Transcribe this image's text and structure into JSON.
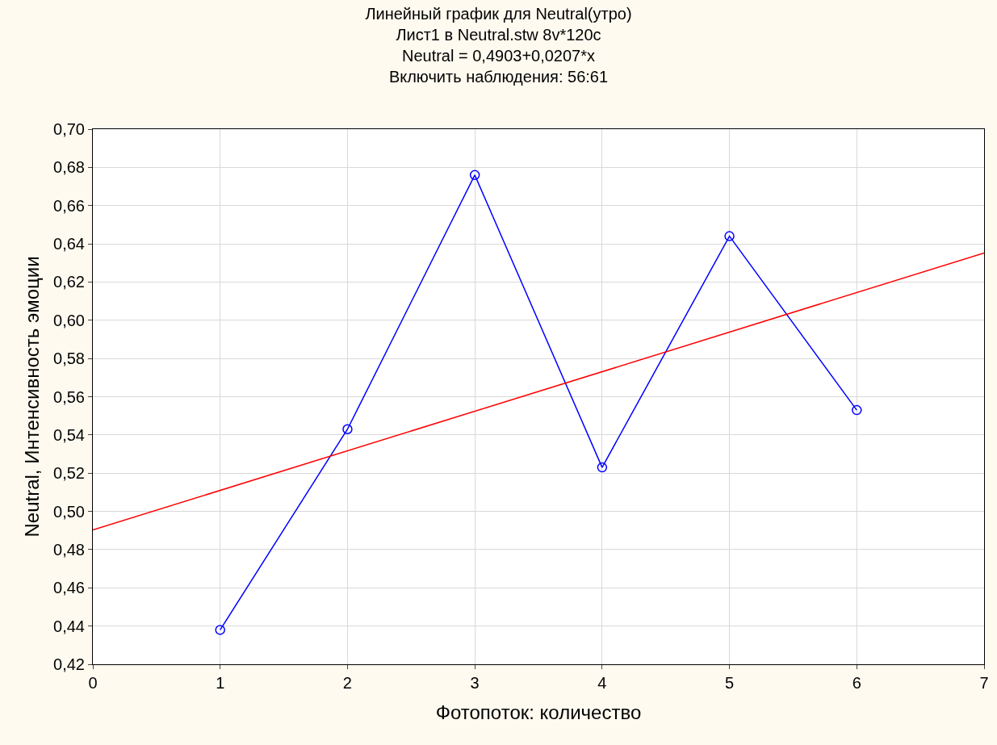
{
  "chart_data": {
    "type": "line",
    "title": "Линейный график для Neutral(утро)\nЛист1 в Neutral.stw 8v*120c\nNeutral = 0,4903+0,0207*x\nВключить наблюдения: 56:61",
    "xlabel": "Фотопоток: количество",
    "ylabel": "Neutral, Интенсивность эмоции",
    "x": [
      1,
      2,
      3,
      4,
      5,
      6
    ],
    "series": [
      {
        "color": "#0000ff",
        "values": [
          0.438,
          0.543,
          0.676,
          0.523,
          0.644,
          0.553
        ]
      },
      {
        "type": "line",
        "color": "#ff0000",
        "x": [
          0,
          7
        ],
        "values": [
          0.4903,
          0.6352
        ],
        "marker": "none"
      }
    ],
    "xlim": [
      0,
      7
    ],
    "xticks": [
      0,
      1,
      2,
      3,
      4,
      5,
      6,
      7
    ],
    "ylim": [
      0.42,
      0.7
    ],
    "yticks": [
      {
        "value": 0.42,
        "label": "0,42"
      },
      {
        "value": 0.44,
        "label": "0,44"
      },
      {
        "value": 0.46,
        "label": "0,46"
      },
      {
        "value": 0.48,
        "label": "0,48"
      },
      {
        "value": 0.5,
        "label": "0,50"
      },
      {
        "value": 0.52,
        "label": "0,52"
      },
      {
        "value": 0.54,
        "label": "0,54"
      },
      {
        "value": 0.56,
        "label": "0,56"
      },
      {
        "value": 0.58,
        "label": "0,58"
      },
      {
        "value": 0.6,
        "label": "0,60"
      },
      {
        "value": 0.62,
        "label": "0,62"
      },
      {
        "value": 0.64,
        "label": "0,64"
      },
      {
        "value": 0.66,
        "label": "0,66"
      },
      {
        "value": 0.68,
        "label": "0,68"
      },
      {
        "value": 0.7,
        "label": "0,70"
      }
    ],
    "grid": true,
    "marker": "circle",
    "line_style": "solid"
  }
}
